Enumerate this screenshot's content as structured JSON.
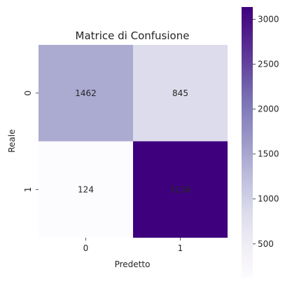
{
  "chart_data": {
    "type": "heatmap",
    "title": "Matrice di Confusione",
    "xlabel": "Predetto",
    "ylabel": "Reale",
    "x_categories": [
      "0",
      "1"
    ],
    "y_categories": [
      "0",
      "1"
    ],
    "values": [
      [
        1462,
        845
      ],
      [
        124,
        3136
      ]
    ],
    "colormap": "Purples",
    "value_range": [
      124,
      3136
    ],
    "colorbar_ticks": [
      500,
      1000,
      1500,
      2000,
      2500,
      3000
    ],
    "legend": "colorbar-right",
    "grid": false
  }
}
